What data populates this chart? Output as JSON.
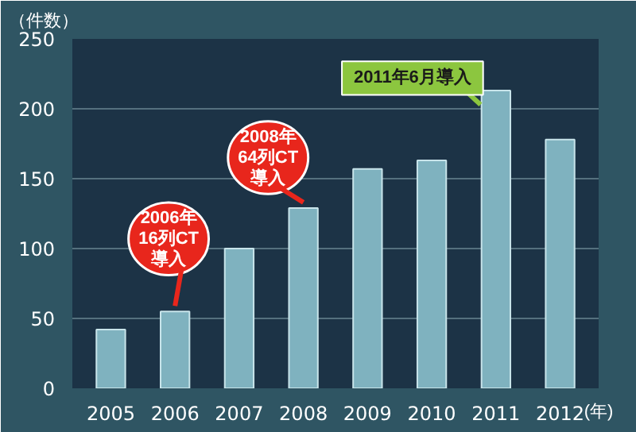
{
  "chart_data": {
    "type": "bar",
    "ylabel": "（件数）",
    "xlabel": "(年)",
    "categories": [
      "2005",
      "2006",
      "2007",
      "2008",
      "2009",
      "2010",
      "2011",
      "2012"
    ],
    "values": [
      42,
      55,
      100,
      129,
      157,
      163,
      213,
      178
    ],
    "color": "#7fb2bf",
    "ylim": [
      0,
      250
    ],
    "yticks": [
      0,
      50,
      100,
      150,
      200,
      250
    ],
    "grid": "y",
    "annotations": [
      {
        "text": "2006年\n16列CT\n導入",
        "x": "2006",
        "y": 55
      },
      {
        "text": "2008年\n64列CT\n導入",
        "x": "2008",
        "y": 129
      },
      {
        "text": "2011年6月導入",
        "x": "2011",
        "y": 213
      }
    ]
  }
}
